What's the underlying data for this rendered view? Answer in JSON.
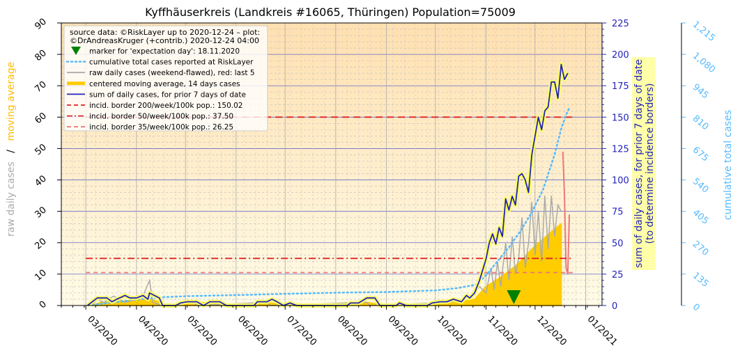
{
  "chart_data": {
    "type": "line",
    "title": "Kyffhäuserkreis (Landkreis #16065, Thüringen) Population=75009",
    "y_left": {
      "label_part1": "raw daily cases",
      "label_sep": "/",
      "label_part2": "moving average",
      "range": [
        0,
        90
      ],
      "ticks": [
        "0",
        "10",
        "20",
        "30",
        "40",
        "50",
        "60",
        "70",
        "80",
        "90"
      ]
    },
    "y_right": {
      "label_line1": "sum of daily cases, for prior 7 days of date",
      "label_line2": "(to determine incidence borders)",
      "range": [
        0,
        225
      ],
      "ticks": [
        "0",
        "25",
        "50",
        "75",
        "100",
        "125",
        "150",
        "175",
        "200",
        "225"
      ]
    },
    "y_right2": {
      "label": "cumulative total cases",
      "range": [
        0,
        1215
      ],
      "ticks": [
        "0",
        "135",
        "270",
        "405",
        "540",
        "675",
        "810",
        "945",
        "1,080",
        "1,215"
      ]
    },
    "x_axis": {
      "range": [
        "2020-02-15",
        "2021-01-11"
      ],
      "ticks": [
        {
          "date": "2020-03-01",
          "label": "03/2020"
        },
        {
          "date": "2020-04-01",
          "label": "04/2020"
        },
        {
          "date": "2020-05-01",
          "label": "05/2020"
        },
        {
          "date": "2020-06-01",
          "label": "06/2020"
        },
        {
          "date": "2020-07-01",
          "label": "07/2020"
        },
        {
          "date": "2020-08-01",
          "label": "08/2020"
        },
        {
          "date": "2020-09-01",
          "label": "09/2020"
        },
        {
          "date": "2020-10-01",
          "label": "10/2020"
        },
        {
          "date": "2020-11-01",
          "label": "11/2020"
        },
        {
          "date": "2020-12-01",
          "label": "12/2020"
        },
        {
          "date": "2021-01-01",
          "label": "01/2021"
        }
      ]
    },
    "legend": {
      "placement": "top-left",
      "source_line1": "source data: ©RiskLayer up to 2020-12-24 – plot:",
      "source_line2": "©DrAndreasKruger (+contrib.) 2020-12-24 04:00",
      "entries": [
        {
          "label": "marker for 'expectation day': 18.11.2020",
          "kind": "marker",
          "color": "#008000"
        },
        {
          "label": "cumulative total cases reported at RiskLayer",
          "kind": "dotted",
          "color": "#55bbff"
        },
        {
          "label": "raw daily cases (weekend-flawed), red: last 5",
          "kind": "line",
          "color": "#aaaaaa"
        },
        {
          "label": "centered moving average, 14 days cases",
          "kind": "thick",
          "color": "#ffcc00"
        },
        {
          "label": "sum of daily cases, for prior 7 days of date",
          "kind": "line",
          "color": "#2222bb"
        },
        {
          "label": "incid. border 200/week/100k pop.: 150.02",
          "kind": "dashed",
          "color": "#dd2222"
        },
        {
          "label": "incid. border 50/week/100k pop.: 37.50",
          "kind": "dashdot",
          "color": "#dd2222"
        },
        {
          "label": "incid. border 35/week/100k pop.: 26.25",
          "kind": "dashed",
          "color": "#ee7777"
        }
      ]
    },
    "expectation_day": "2020-11-18",
    "incidence_borders": [
      {
        "name": "200/week/100k",
        "value": 150.02,
        "color": "#dd2222",
        "dash": "10,6"
      },
      {
        "name": "50/week/100k",
        "value": 37.5,
        "color": "#dd2222",
        "dash": "10,4,2,4"
      },
      {
        "name": "35/week/100k",
        "value": 26.25,
        "color": "#ee7777",
        "dash": "6,5"
      }
    ],
    "series": [
      {
        "name": "sum of daily cases, for prior 7 days of date",
        "axis": "right",
        "color": "#2222bb",
        "points": [
          [
            "2020-03-02",
            0
          ],
          [
            "2020-03-05",
            3
          ],
          [
            "2020-03-08",
            6
          ],
          [
            "2020-03-14",
            6
          ],
          [
            "2020-03-17",
            3
          ],
          [
            "2020-03-20",
            5
          ],
          [
            "2020-03-25",
            8
          ],
          [
            "2020-03-28",
            6
          ],
          [
            "2020-04-01",
            6
          ],
          [
            "2020-04-05",
            8
          ],
          [
            "2020-04-08",
            5
          ],
          [
            "2020-04-09",
            10
          ],
          [
            "2020-04-12",
            8
          ],
          [
            "2020-04-15",
            6
          ],
          [
            "2020-04-17",
            0
          ],
          [
            "2020-04-25",
            0
          ],
          [
            "2020-04-28",
            2
          ],
          [
            "2020-05-02",
            3
          ],
          [
            "2020-05-08",
            3
          ],
          [
            "2020-05-12",
            0
          ],
          [
            "2020-05-16",
            3
          ],
          [
            "2020-05-22",
            3
          ],
          [
            "2020-05-26",
            0
          ],
          [
            "2020-06-12",
            0
          ],
          [
            "2020-06-14",
            3
          ],
          [
            "2020-06-20",
            3
          ],
          [
            "2020-06-23",
            5
          ],
          [
            "2020-06-26",
            3
          ],
          [
            "2020-06-30",
            0
          ],
          [
            "2020-07-04",
            2
          ],
          [
            "2020-07-08",
            0
          ],
          [
            "2020-08-08",
            0
          ],
          [
            "2020-08-10",
            2
          ],
          [
            "2020-08-15",
            2
          ],
          [
            "2020-08-20",
            6
          ],
          [
            "2020-08-25",
            6
          ],
          [
            "2020-08-28",
            0
          ],
          [
            "2020-09-07",
            0
          ],
          [
            "2020-09-09",
            2
          ],
          [
            "2020-09-13",
            0
          ],
          [
            "2020-09-26",
            0
          ],
          [
            "2020-09-29",
            2
          ],
          [
            "2020-10-04",
            3
          ],
          [
            "2020-10-08",
            3
          ],
          [
            "2020-10-12",
            5
          ],
          [
            "2020-10-17",
            3
          ],
          [
            "2020-10-20",
            8
          ],
          [
            "2020-10-22",
            6
          ],
          [
            "2020-10-25",
            10
          ],
          [
            "2020-10-28",
            20
          ],
          [
            "2020-11-01",
            37
          ],
          [
            "2020-11-03",
            50
          ],
          [
            "2020-11-05",
            57
          ],
          [
            "2020-11-07",
            49
          ],
          [
            "2020-11-09",
            62
          ],
          [
            "2020-11-11",
            55
          ],
          [
            "2020-11-13",
            85
          ],
          [
            "2020-11-15",
            76
          ],
          [
            "2020-11-17",
            87
          ],
          [
            "2020-11-19",
            80
          ],
          [
            "2020-11-21",
            103
          ],
          [
            "2020-11-23",
            105
          ],
          [
            "2020-11-25",
            100
          ],
          [
            "2020-11-27",
            90
          ],
          [
            "2020-11-29",
            120
          ],
          [
            "2020-12-01",
            135
          ],
          [
            "2020-12-03",
            150
          ],
          [
            "2020-12-05",
            140
          ],
          [
            "2020-12-07",
            155
          ],
          [
            "2020-12-09",
            158
          ],
          [
            "2020-12-11",
            178
          ],
          [
            "2020-12-13",
            178
          ],
          [
            "2020-12-15",
            165
          ],
          [
            "2020-12-17",
            192
          ],
          [
            "2020-12-19",
            180
          ],
          [
            "2020-12-21",
            185
          ]
        ]
      },
      {
        "name": "cumulative total cases reported at RiskLayer",
        "axis": "right2",
        "color": "#55bbff",
        "points": [
          [
            "2020-03-05",
            3
          ],
          [
            "2020-03-20",
            15
          ],
          [
            "2020-04-01",
            25
          ],
          [
            "2020-04-15",
            35
          ],
          [
            "2020-05-01",
            40
          ],
          [
            "2020-06-01",
            45
          ],
          [
            "2020-07-01",
            50
          ],
          [
            "2020-08-01",
            55
          ],
          [
            "2020-09-01",
            58
          ],
          [
            "2020-10-01",
            65
          ],
          [
            "2020-10-15",
            75
          ],
          [
            "2020-10-26",
            90
          ],
          [
            "2020-11-01",
            130
          ],
          [
            "2020-11-08",
            190
          ],
          [
            "2020-11-15",
            250
          ],
          [
            "2020-11-22",
            320
          ],
          [
            "2020-11-29",
            400
          ],
          [
            "2020-12-06",
            500
          ],
          [
            "2020-12-13",
            650
          ],
          [
            "2020-12-17",
            760
          ],
          [
            "2020-12-20",
            820
          ],
          [
            "2020-12-22",
            850
          ]
        ]
      },
      {
        "name": "centered moving average, 14 days cases",
        "axis": "left",
        "color": "#ffcc00",
        "points": [
          [
            "2020-03-05",
            0
          ],
          [
            "2020-03-10",
            1
          ],
          [
            "2020-04-10",
            2
          ],
          [
            "2020-04-16",
            1
          ],
          [
            "2020-04-20",
            0
          ],
          [
            "2020-05-10",
            1
          ],
          [
            "2020-06-01",
            0
          ],
          [
            "2020-06-20",
            1
          ],
          [
            "2020-07-01",
            0
          ],
          [
            "2020-08-20",
            1
          ],
          [
            "2020-09-01",
            0
          ],
          [
            "2020-10-01",
            0.5
          ],
          [
            "2020-10-15",
            1
          ],
          [
            "2020-10-25",
            2
          ],
          [
            "2020-11-01",
            6
          ],
          [
            "2020-11-10",
            9
          ],
          [
            "2020-11-20",
            13
          ],
          [
            "2020-12-01",
            19
          ],
          [
            "2020-12-10",
            23
          ],
          [
            "2020-12-17",
            26
          ]
        ]
      },
      {
        "name": "raw daily cases (weekend-flawed)",
        "axis": "left",
        "color": "#aaaaaa",
        "points": [
          [
            "2020-03-05",
            0
          ],
          [
            "2020-03-08",
            2
          ],
          [
            "2020-03-12",
            1
          ],
          [
            "2020-03-18",
            3
          ],
          [
            "2020-03-25",
            1
          ],
          [
            "2020-04-01",
            2
          ],
          [
            "2020-04-05",
            3
          ],
          [
            "2020-04-09",
            8
          ],
          [
            "2020-04-11",
            1
          ],
          [
            "2020-04-17",
            0
          ],
          [
            "2020-05-05",
            1
          ],
          [
            "2020-05-08",
            0
          ],
          [
            "2020-06-20",
            1
          ],
          [
            "2020-06-22",
            0
          ],
          [
            "2020-08-20",
            1
          ],
          [
            "2020-08-22",
            0
          ],
          [
            "2020-10-10",
            1
          ],
          [
            "2020-10-18",
            2
          ],
          [
            "2020-10-24",
            3
          ],
          [
            "2020-10-28",
            6
          ],
          [
            "2020-11-01",
            4
          ],
          [
            "2020-11-04",
            12
          ],
          [
            "2020-11-06",
            5
          ],
          [
            "2020-11-08",
            14
          ],
          [
            "2020-11-10",
            6
          ],
          [
            "2020-11-13",
            20
          ],
          [
            "2020-11-15",
            8
          ],
          [
            "2020-11-17",
            22
          ],
          [
            "2020-11-19",
            10
          ],
          [
            "2020-11-21",
            15
          ],
          [
            "2020-11-23",
            28
          ],
          [
            "2020-11-25",
            12
          ],
          [
            "2020-11-27",
            20
          ],
          [
            "2020-11-29",
            33
          ],
          [
            "2020-12-01",
            16
          ],
          [
            "2020-12-03",
            30
          ],
          [
            "2020-12-05",
            14
          ],
          [
            "2020-12-07",
            35
          ],
          [
            "2020-12-09",
            18
          ],
          [
            "2020-12-11",
            35
          ],
          [
            "2020-12-13",
            22
          ],
          [
            "2020-12-15",
            32
          ],
          [
            "2020-12-17",
            30
          ]
        ]
      },
      {
        "name": "raw daily cases, last 5",
        "axis": "left",
        "color": "#ee7777",
        "points": [
          [
            "2020-12-18",
            49
          ],
          [
            "2020-12-19",
            35
          ],
          [
            "2020-12-20",
            12
          ],
          [
            "2020-12-21",
            10
          ],
          [
            "2020-12-22",
            29
          ]
        ]
      }
    ]
  }
}
